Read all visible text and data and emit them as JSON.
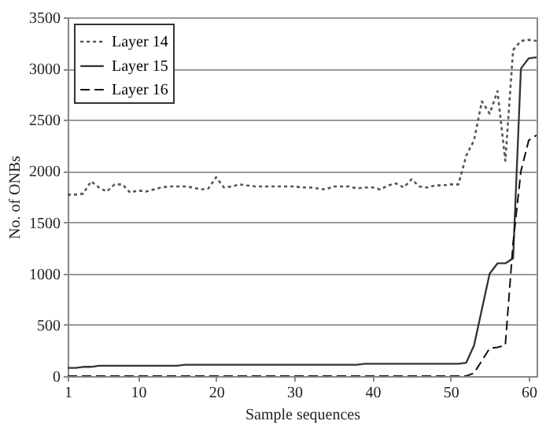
{
  "chart_data": {
    "type": "line",
    "xlabel": "Sample sequences",
    "ylabel": "No. of ONBs",
    "x": [
      1,
      2,
      3,
      4,
      5,
      6,
      7,
      8,
      9,
      10,
      11,
      12,
      13,
      14,
      15,
      16,
      17,
      18,
      19,
      20,
      21,
      22,
      23,
      24,
      25,
      26,
      27,
      28,
      29,
      30,
      31,
      32,
      33,
      34,
      35,
      36,
      37,
      38,
      39,
      40,
      41,
      42,
      43,
      44,
      45,
      46,
      47,
      48,
      49,
      50,
      51,
      52,
      53,
      54,
      55,
      56,
      57,
      58,
      59,
      60,
      61
    ],
    "series": [
      {
        "name": "Layer 14",
        "color": "#555555",
        "line_style": "dotted",
        "values": [
          1770,
          1770,
          1780,
          1900,
          1840,
          1800,
          1870,
          1870,
          1790,
          1810,
          1800,
          1820,
          1840,
          1850,
          1850,
          1850,
          1840,
          1820,
          1830,
          1940,
          1840,
          1850,
          1870,
          1860,
          1850,
          1850,
          1850,
          1850,
          1850,
          1850,
          1840,
          1840,
          1830,
          1820,
          1850,
          1850,
          1850,
          1830,
          1840,
          1840,
          1820,
          1860,
          1880,
          1840,
          1920,
          1850,
          1840,
          1860,
          1860,
          1870,
          1870,
          2150,
          2300,
          2680,
          2560,
          2780,
          2100,
          3180,
          3270,
          3280,
          3270
        ]
      },
      {
        "name": "Layer 15",
        "color": "#333333",
        "line_style": "solid",
        "values": [
          80,
          80,
          90,
          90,
          100,
          100,
          100,
          100,
          100,
          100,
          100,
          100,
          100,
          100,
          100,
          110,
          110,
          110,
          110,
          110,
          110,
          110,
          110,
          110,
          110,
          110,
          110,
          110,
          110,
          110,
          110,
          110,
          110,
          110,
          110,
          110,
          110,
          110,
          120,
          120,
          120,
          120,
          120,
          120,
          120,
          120,
          120,
          120,
          120,
          120,
          120,
          130,
          300,
          650,
          1000,
          1100,
          1100,
          1150,
          3000,
          3100,
          3110
        ]
      },
      {
        "name": "Layer 16",
        "color": "#111111",
        "line_style": "dashed",
        "values": [
          0,
          0,
          0,
          0,
          0,
          0,
          0,
          0,
          0,
          0,
          0,
          0,
          0,
          0,
          0,
          0,
          0,
          0,
          0,
          0,
          0,
          0,
          0,
          0,
          0,
          0,
          0,
          0,
          0,
          0,
          0,
          0,
          0,
          0,
          0,
          0,
          0,
          0,
          0,
          0,
          0,
          0,
          0,
          0,
          0,
          0,
          0,
          0,
          0,
          0,
          0,
          0,
          30,
          150,
          270,
          280,
          300,
          1300,
          2000,
          2300,
          2350
        ]
      }
    ],
    "xlim": [
      1,
      61
    ],
    "xticks": [
      1,
      10,
      20,
      30,
      40,
      50,
      60
    ],
    "ylim": [
      0,
      3500
    ],
    "yticks": [
      0,
      500,
      1000,
      1500,
      2000,
      2500,
      3000,
      3500
    ],
    "grid": "y",
    "legend": "top left",
    "marker": "none"
  }
}
